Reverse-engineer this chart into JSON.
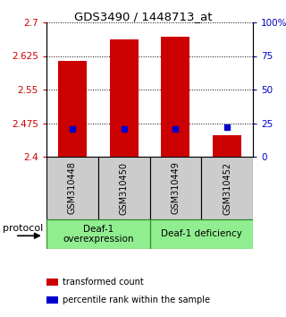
{
  "title": "GDS3490 / 1448713_at",
  "samples": [
    "GSM310448",
    "GSM310450",
    "GSM310449",
    "GSM310452"
  ],
  "transformed_counts": [
    2.614,
    2.663,
    2.668,
    2.447
  ],
  "percentile_values": [
    2.462,
    2.462,
    2.463,
    2.467
  ],
  "ylim_left": [
    2.4,
    2.7
  ],
  "ylim_right": [
    0,
    100
  ],
  "left_ticks": [
    2.4,
    2.475,
    2.55,
    2.625,
    2.7
  ],
  "right_ticks": [
    0,
    25,
    50,
    75,
    100
  ],
  "right_tick_labels": [
    "0",
    "25",
    "50",
    "75",
    "100%"
  ],
  "bar_color": "#cc0000",
  "percentile_color": "#0000cc",
  "bar_width": 0.55,
  "tick_label_color_left": "#cc0000",
  "tick_label_color_right": "#0000cc",
  "legend_items": [
    {
      "color": "#cc0000",
      "label": "transformed count"
    },
    {
      "color": "#0000cc",
      "label": "percentile rank within the sample"
    }
  ],
  "group1_label": "Deaf-1\noverexpression",
  "group2_label": "Deaf-1 deficiency",
  "group_color": "#90ee90",
  "group_edge_color": "#228B22",
  "sample_box_color": "#cccccc",
  "protocol_label": "protocol"
}
